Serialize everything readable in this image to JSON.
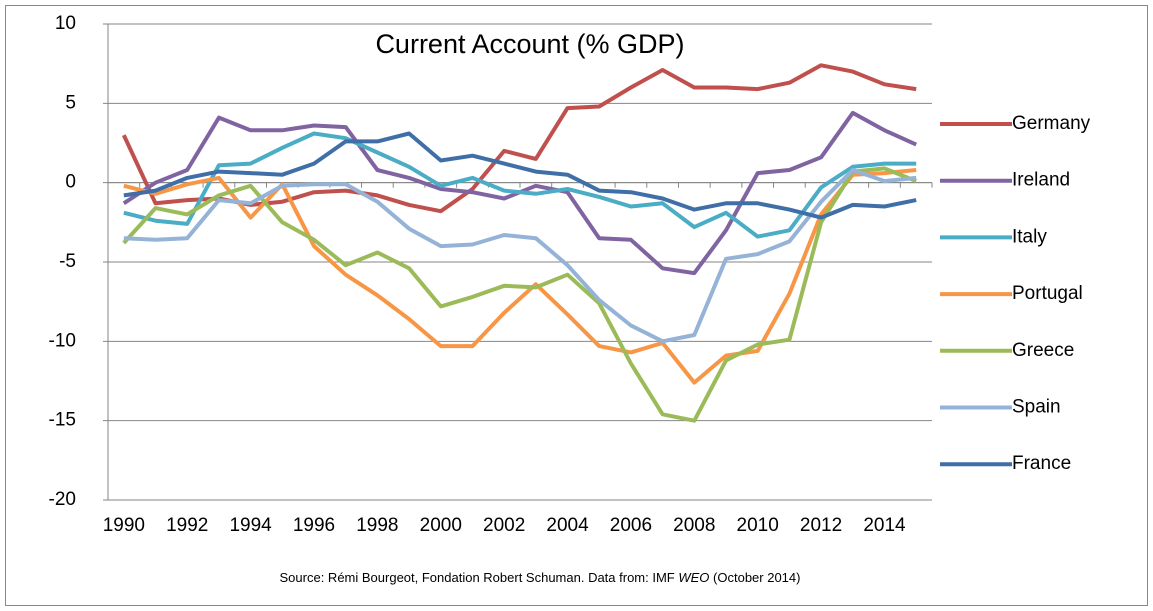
{
  "chart_data": {
    "type": "line",
    "title": "Current Account (% GDP)",
    "note": {
      "before": "Source: Rémi Bourgeot, Fondation Robert Schuman.   Data from: IMF ",
      "italic": "WEO",
      "after": " (October 2014)"
    },
    "x": [
      1990,
      1991,
      1992,
      1993,
      1994,
      1995,
      1996,
      1997,
      1998,
      1999,
      2000,
      2001,
      2002,
      2003,
      2004,
      2005,
      2006,
      2007,
      2008,
      2009,
      2010,
      2011,
      2012,
      2013,
      2014,
      2015
    ],
    "xlim": [
      1989.5,
      2015.5
    ],
    "xticks": [
      1990,
      1992,
      1994,
      1996,
      1998,
      2000,
      2002,
      2004,
      2006,
      2008,
      2010,
      2012,
      2014
    ],
    "ylim": [
      -20,
      10
    ],
    "yticks": [
      -20,
      -15,
      -10,
      -5,
      0,
      5,
      10
    ],
    "grid": true,
    "legend": "right",
    "series": [
      {
        "name": "Germany",
        "color": "#c0504d",
        "values": [
          3.0,
          -1.3,
          -1.1,
          -1.0,
          -1.4,
          -1.2,
          -0.6,
          -0.5,
          -0.8,
          -1.4,
          -1.8,
          -0.4,
          2.0,
          1.5,
          4.7,
          4.8,
          6.0,
          7.1,
          6.0,
          6.0,
          5.9,
          6.3,
          7.4,
          7.0,
          6.2,
          5.9
        ]
      },
      {
        "name": "Ireland",
        "color": "#8064a2",
        "values": [
          -1.3,
          0.0,
          0.8,
          4.1,
          3.3,
          3.3,
          3.6,
          3.5,
          0.8,
          0.3,
          -0.4,
          -0.6,
          -1.0,
          -0.2,
          -0.6,
          -3.5,
          -3.6,
          -5.4,
          -5.7,
          -3.0,
          0.6,
          0.8,
          1.6,
          4.4,
          3.3,
          2.4
        ]
      },
      {
        "name": "Italy",
        "color": "#4bacc6",
        "values": [
          -1.9,
          -2.4,
          -2.6,
          1.1,
          1.2,
          2.2,
          3.1,
          2.8,
          1.9,
          1.0,
          -0.2,
          0.3,
          -0.5,
          -0.7,
          -0.4,
          -0.9,
          -1.5,
          -1.3,
          -2.8,
          -1.9,
          -3.4,
          -3.0,
          -0.3,
          1.0,
          1.2,
          1.2
        ]
      },
      {
        "name": "Portugal",
        "color": "#f79646",
        "values": [
          -0.2,
          -0.7,
          -0.1,
          0.3,
          -2.2,
          -0.1,
          -4.0,
          -5.8,
          -7.1,
          -8.6,
          -10.3,
          -10.3,
          -8.2,
          -6.4,
          -8.3,
          -10.3,
          -10.7,
          -10.1,
          -12.6,
          -10.9,
          -10.6,
          -7.0,
          -2.0,
          0.5,
          0.6,
          0.8
        ]
      },
      {
        "name": "Greece",
        "color": "#9bbb59",
        "values": [
          -3.8,
          -1.6,
          -2.0,
          -0.8,
          -0.2,
          -2.5,
          -3.6,
          -5.2,
          -4.4,
          -5.4,
          -7.8,
          -7.2,
          -6.5,
          -6.6,
          -5.8,
          -7.6,
          -11.4,
          -14.6,
          -15.0,
          -11.2,
          -10.2,
          -9.9,
          -2.5,
          0.7,
          0.9,
          0.1
        ]
      },
      {
        "name": "Spain",
        "color": "#95b3d7",
        "values": [
          -3.5,
          -3.6,
          -3.5,
          -1.1,
          -1.3,
          -0.2,
          -0.1,
          -0.1,
          -1.2,
          -2.9,
          -4.0,
          -3.9,
          -3.3,
          -3.5,
          -5.2,
          -7.4,
          -9.0,
          -10.0,
          -9.6,
          -4.8,
          -4.5,
          -3.7,
          -1.2,
          0.8,
          0.1,
          0.3
        ]
      },
      {
        "name": "France",
        "color": "#3f6fa6",
        "values": [
          -0.8,
          -0.5,
          0.3,
          0.7,
          0.6,
          0.5,
          1.2,
          2.6,
          2.6,
          3.1,
          1.4,
          1.7,
          1.2,
          0.7,
          0.5,
          -0.5,
          -0.6,
          -1.0,
          -1.7,
          -1.3,
          -1.3,
          -1.7,
          -2.2,
          -1.4,
          -1.5,
          -1.1
        ]
      }
    ]
  }
}
